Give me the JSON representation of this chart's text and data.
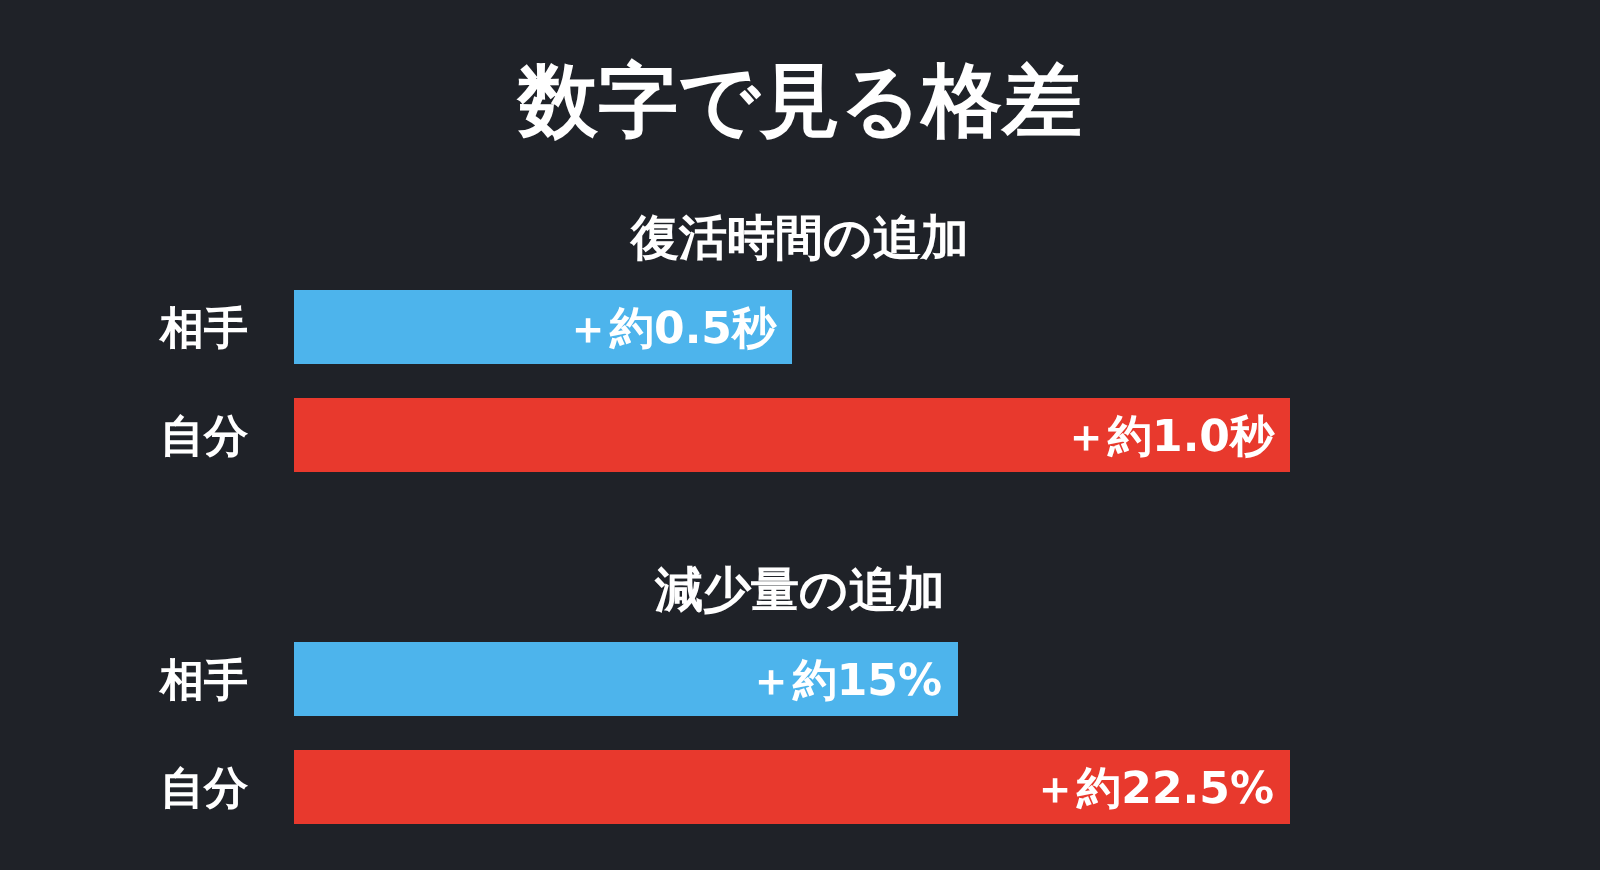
{
  "chart_data": [
    {
      "type": "bar",
      "orientation": "horizontal",
      "title": "数字で見る格差",
      "subtitle": "復活時間の追加",
      "categories": [
        "相手",
        "自分"
      ],
      "values": [
        0.5,
        1.0
      ],
      "colors": [
        "#4db4ec",
        "#e8392d"
      ],
      "value_labels": [
        "＋約0.5秒",
        "＋約1.0秒"
      ]
    },
    {
      "type": "bar",
      "orientation": "horizontal",
      "subtitle": "減少量の追加",
      "categories": [
        "相手",
        "自分"
      ],
      "values": [
        15,
        22.5
      ],
      "colors": [
        "#4db4ec",
        "#e8392d"
      ],
      "value_labels": [
        "＋約15%",
        "＋約22.5%"
      ]
    }
  ]
}
